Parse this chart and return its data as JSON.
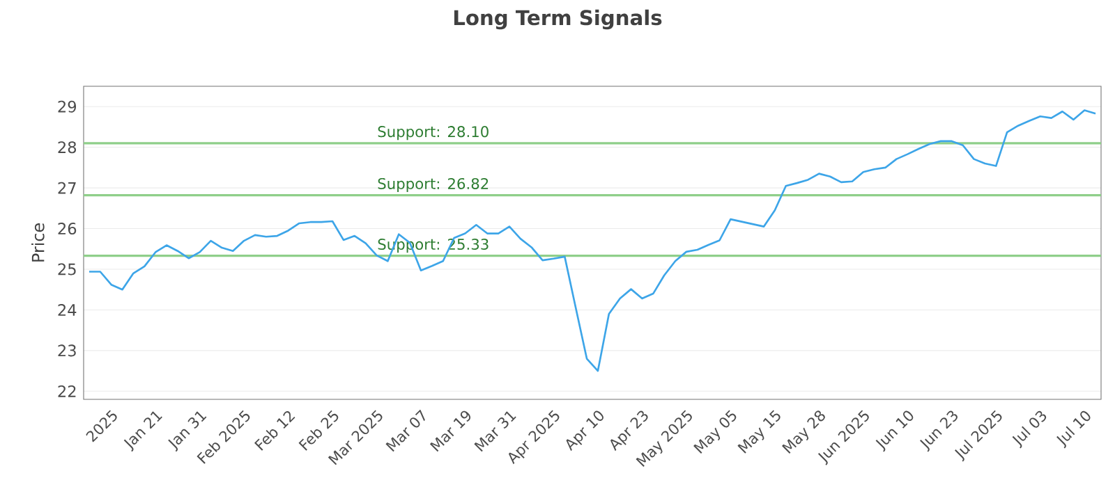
{
  "chart_data": {
    "type": "line",
    "title": "Long Term Signals",
    "ylabel": "Price",
    "categories": [
      null,
      null,
      "2025",
      null,
      null,
      null,
      "Jan 21",
      null,
      null,
      null,
      "Jan 31",
      null,
      null,
      null,
      "Feb 2025",
      null,
      null,
      null,
      "Feb 12",
      null,
      null,
      null,
      "Feb 25",
      null,
      null,
      null,
      "Mar 2025",
      null,
      null,
      null,
      "Mar 07",
      null,
      null,
      null,
      "Mar 19",
      null,
      null,
      null,
      "Mar 31",
      null,
      null,
      null,
      "Apr 2025",
      null,
      null,
      null,
      "Apr 10",
      null,
      null,
      null,
      "Apr 23",
      null,
      null,
      null,
      "May 2025",
      null,
      null,
      null,
      "May 05",
      null,
      null,
      null,
      "May 15",
      null,
      null,
      null,
      "May 28",
      null,
      null,
      null,
      "Jun 2025",
      null,
      null,
      null,
      "Jun 10",
      null,
      null,
      null,
      "Jun 23",
      null,
      null,
      null,
      "Jul 2025",
      null,
      null,
      null,
      "Jul 03",
      null,
      null,
      null,
      "Jul 10",
      null
    ],
    "series": [
      {
        "color": "#3da5e8",
        "values": [
          24.94,
          24.94,
          24.62,
          24.5,
          24.9,
          25.07,
          25.42,
          25.59,
          25.45,
          25.27,
          25.42,
          25.7,
          25.53,
          25.45,
          25.7,
          25.84,
          25.8,
          25.82,
          25.95,
          26.13,
          26.16,
          26.16,
          26.18,
          25.72,
          25.82,
          25.64,
          25.34,
          25.2,
          25.86,
          25.65,
          24.97,
          25.08,
          25.2,
          25.77,
          25.88,
          26.09,
          25.88,
          25.88,
          26.05,
          25.75,
          25.54,
          25.22,
          25.26,
          25.31,
          24.05,
          22.8,
          22.5,
          23.9,
          24.28,
          24.51,
          24.28,
          24.4,
          24.85,
          25.2,
          25.43,
          25.48,
          25.6,
          25.71,
          26.23,
          26.17,
          26.11,
          26.05,
          26.45,
          27.05,
          27.12,
          27.2,
          27.35,
          27.28,
          27.14,
          27.16,
          27.39,
          27.46,
          27.5,
          27.71,
          27.83,
          27.96,
          28.08,
          28.15,
          28.15,
          28.05,
          27.71,
          27.6,
          27.54,
          28.37,
          28.53,
          28.65,
          28.76,
          28.72,
          28.88,
          28.68,
          28.91,
          28.83
        ]
      }
    ],
    "ylim": [
      21.8,
      29.5
    ],
    "yticks": [
      22,
      23,
      24,
      25,
      26,
      27,
      28,
      29
    ],
    "grid": "y",
    "marker": "none",
    "line_style": "solid",
    "ref_lines": [
      {
        "axis": "y",
        "value": 28.1,
        "label": "Support: 28.10",
        "color": "#8fcf8a"
      },
      {
        "axis": "y",
        "value": 26.82,
        "label": "Support: 26.82",
        "color": "#8fcf8a"
      },
      {
        "axis": "y",
        "value": 25.33,
        "label": "Support: 25.33",
        "color": "#8fcf8a"
      }
    ]
  }
}
